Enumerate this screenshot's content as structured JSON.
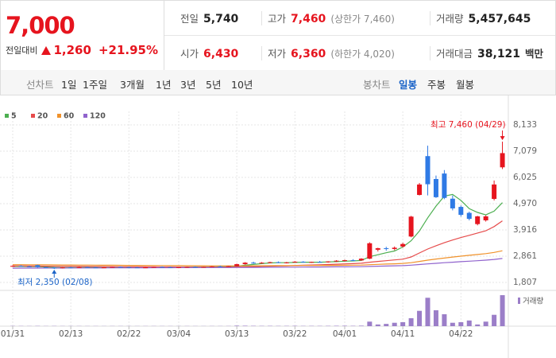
{
  "quote": {
    "price": "7,000",
    "change_label": "전일대비",
    "change": "1,260",
    "change_rate": "+21.95%"
  },
  "summary": [
    [
      {
        "label": "전일",
        "value": "5,740"
      },
      {
        "label": "고가",
        "value": "7,460",
        "note": "(상한가 7,460)",
        "color": "#e6141e"
      },
      {
        "label": "거래량",
        "value": "5,457,645"
      }
    ],
    [
      {
        "label": "시가",
        "value": "6,430",
        "color": "#e6141e"
      },
      {
        "label": "저가",
        "value": "6,360",
        "note": "(하한가 4,020)",
        "color": "#e6141e"
      },
      {
        "label": "거래대금",
        "value": "38,121",
        "unit": "백만"
      }
    ]
  ],
  "tabs": {
    "line_label": "선차트",
    "line_items": [
      "1일",
      "1주일",
      "3개월",
      "1년",
      "3년",
      "5년",
      "10년"
    ],
    "candle_label": "봉차트",
    "candle_items": [
      "일봉",
      "주봉",
      "월봉"
    ],
    "candle_selected": 0
  },
  "chart_data": {
    "type": "candlestick",
    "categories": [
      "01/31",
      null,
      null,
      null,
      null,
      null,
      null,
      "02/13",
      null,
      null,
      null,
      null,
      null,
      null,
      "02/22",
      null,
      null,
      null,
      null,
      null,
      "03/04",
      null,
      null,
      null,
      null,
      null,
      null,
      "03/13",
      null,
      null,
      null,
      null,
      null,
      null,
      "03/22",
      null,
      null,
      null,
      null,
      null,
      "04/01",
      null,
      null,
      null,
      null,
      null,
      null,
      "04/11",
      null,
      null,
      null,
      null,
      null,
      null,
      "04/22",
      null,
      null,
      null,
      null,
      null
    ],
    "open": [
      2460,
      2470,
      2450,
      2500,
      2420,
      2400,
      2380,
      2410,
      2400,
      2420,
      2410,
      2400,
      2410,
      2430,
      2420,
      2410,
      2400,
      2410,
      2430,
      2420,
      2410,
      2420,
      2430,
      2420,
      2430,
      2450,
      2440,
      2460,
      2540,
      2600,
      2580,
      2600,
      2620,
      2590,
      2610,
      2640,
      2610,
      2630,
      2620,
      2650,
      2680,
      2700,
      2690,
      2760,
      3120,
      3180,
      3150,
      3250,
      3650,
      5320,
      6880,
      5960,
      6180,
      5170,
      4840,
      4600,
      4150,
      4300,
      5160,
      6430
    ],
    "high": [
      2490,
      2500,
      2480,
      2520,
      2440,
      2420,
      2420,
      2430,
      2430,
      2440,
      2430,
      2420,
      2440,
      2450,
      2440,
      2430,
      2420,
      2440,
      2450,
      2440,
      2430,
      2440,
      2450,
      2440,
      2460,
      2480,
      2470,
      2560,
      2620,
      2640,
      2620,
      2640,
      2650,
      2630,
      2660,
      2660,
      2640,
      2670,
      2660,
      2700,
      2720,
      2740,
      2780,
      3420,
      3200,
      3240,
      3250,
      3400,
      4480,
      5800,
      7300,
      6100,
      6320,
      5300,
      4900,
      4650,
      4480,
      4500,
      5900,
      7460
    ],
    "low": [
      2430,
      2440,
      2420,
      2400,
      2380,
      2350,
      2370,
      2390,
      2390,
      2400,
      2390,
      2380,
      2400,
      2410,
      2400,
      2390,
      2390,
      2400,
      2410,
      2400,
      2400,
      2410,
      2410,
      2410,
      2420,
      2430,
      2430,
      2450,
      2520,
      2560,
      2560,
      2580,
      2580,
      2570,
      2600,
      2600,
      2590,
      2610,
      2600,
      2630,
      2650,
      2670,
      2680,
      2740,
      3050,
      3080,
      3100,
      3200,
      3620,
      5300,
      5300,
      5200,
      5150,
      4700,
      4450,
      4300,
      4100,
      4250,
      5100,
      6360
    ],
    "close": [
      2470,
      2450,
      2440,
      2420,
      2400,
      2380,
      2410,
      2400,
      2420,
      2410,
      2400,
      2410,
      2430,
      2420,
      2410,
      2400,
      2410,
      2430,
      2420,
      2410,
      2420,
      2430,
      2420,
      2430,
      2450,
      2440,
      2460,
      2540,
      2600,
      2580,
      2600,
      2620,
      2590,
      2610,
      2640,
      2610,
      2630,
      2620,
      2650,
      2680,
      2700,
      2690,
      2760,
      3380,
      3180,
      3150,
      3200,
      3350,
      4450,
      5740,
      5750,
      5230,
      5200,
      4780,
      4520,
      4360,
      4460,
      4460,
      5740,
      7000
    ],
    "up_color": "#e6141e",
    "down_color": "#2f7ae5",
    "series": [
      {
        "name": "5",
        "color": "#4caf50",
        "values": [
          2450,
          2450,
          2445,
          2440,
          2430,
          2410,
          2400,
          2400,
          2405,
          2410,
          2410,
          2405,
          2410,
          2415,
          2415,
          2410,
          2405,
          2410,
          2415,
          2415,
          2415,
          2420,
          2425,
          2425,
          2430,
          2435,
          2440,
          2460,
          2500,
          2530,
          2560,
          2590,
          2600,
          2600,
          2610,
          2620,
          2620,
          2620,
          2630,
          2640,
          2660,
          2670,
          2690,
          2840,
          2920,
          3000,
          3070,
          3230,
          3480,
          3870,
          4400,
          4870,
          5270,
          5340,
          5100,
          4770,
          4620,
          4520,
          4670,
          5010
        ]
      },
      {
        "name": "20",
        "color": "#e64b4b",
        "values": [
          2470,
          2470,
          2465,
          2462,
          2458,
          2455,
          2452,
          2450,
          2448,
          2446,
          2444,
          2442,
          2440,
          2438,
          2436,
          2434,
          2432,
          2430,
          2428,
          2426,
          2424,
          2422,
          2421,
          2420,
          2420,
          2421,
          2422,
          2428,
          2436,
          2444,
          2452,
          2460,
          2468,
          2476,
          2486,
          2496,
          2506,
          2516,
          2526,
          2538,
          2550,
          2562,
          2576,
          2620,
          2650,
          2680,
          2710,
          2740,
          2830,
          2990,
          3150,
          3280,
          3400,
          3510,
          3610,
          3700,
          3790,
          3880,
          4050,
          4280
        ]
      },
      {
        "name": "60",
        "color": "#f0922b",
        "values": [
          2520,
          2518,
          2516,
          2514,
          2512,
          2510,
          2508,
          2506,
          2504,
          2502,
          2500,
          2498,
          2496,
          2494,
          2492,
          2490,
          2488,
          2486,
          2484,
          2482,
          2480,
          2478,
          2476,
          2474,
          2472,
          2470,
          2470,
          2470,
          2472,
          2474,
          2476,
          2478,
          2480,
          2482,
          2484,
          2486,
          2488,
          2490,
          2492,
          2495,
          2498,
          2501,
          2505,
          2520,
          2532,
          2544,
          2556,
          2570,
          2600,
          2650,
          2700,
          2745,
          2785,
          2825,
          2860,
          2895,
          2930,
          2965,
          3010,
          3080
        ]
      },
      {
        "name": "120",
        "color": "#9063cd",
        "values": [
          2380,
          2381,
          2382,
          2383,
          2384,
          2385,
          2386,
          2387,
          2388,
          2389,
          2390,
          2391,
          2392,
          2393,
          2394,
          2395,
          2396,
          2397,
          2398,
          2399,
          2400,
          2401,
          2402,
          2403,
          2404,
          2405,
          2406,
          2408,
          2410,
          2412,
          2414,
          2416,
          2418,
          2420,
          2422,
          2424,
          2426,
          2428,
          2430,
          2432,
          2434,
          2437,
          2440,
          2450,
          2458,
          2466,
          2474,
          2482,
          2500,
          2525,
          2550,
          2575,
          2598,
          2620,
          2640,
          2660,
          2680,
          2700,
          2730,
          2770
        ]
      }
    ],
    "volume": {
      "name": "거래량",
      "color": "#9b7ec8",
      "ylim": [
        0,
        5600000
      ],
      "values": [
        40000,
        35000,
        30000,
        45000,
        30000,
        38000,
        30000,
        28000,
        30000,
        25000,
        26000,
        24000,
        30000,
        28000,
        25000,
        24000,
        26000,
        30000,
        28000,
        25000,
        24000,
        26000,
        25000,
        24000,
        30000,
        28000,
        32000,
        90000,
        80000,
        60000,
        50000,
        55000,
        45000,
        50000,
        60000,
        45000,
        50000,
        48000,
        55000,
        70000,
        75000,
        60000,
        90000,
        800000,
        300000,
        400000,
        600000,
        700000,
        1400000,
        2700000,
        5000000,
        2800000,
        2100000,
        600000,
        700000,
        1000000,
        300000,
        800000,
        2000000,
        5457645
      ]
    },
    "ylim": [
      1807,
      8133
    ],
    "yticks": [
      {
        "value": 8133,
        "label": "8,133"
      },
      {
        "value": 7079,
        "label": "7,079"
      },
      {
        "value": 6025,
        "label": "6,025"
      },
      {
        "value": 4970,
        "label": "4,970"
      },
      {
        "value": 3916,
        "label": "3,916"
      },
      {
        "value": 2861,
        "label": "2,861"
      },
      {
        "value": 1807,
        "label": "1,807"
      }
    ],
    "grid": true,
    "annotations": {
      "high": {
        "text": "최고 7,460 (04/29)",
        "color": "#e6141e"
      },
      "low": {
        "text": "최저 2,350 (02/08)",
        "color": "#1c64c8"
      }
    }
  }
}
